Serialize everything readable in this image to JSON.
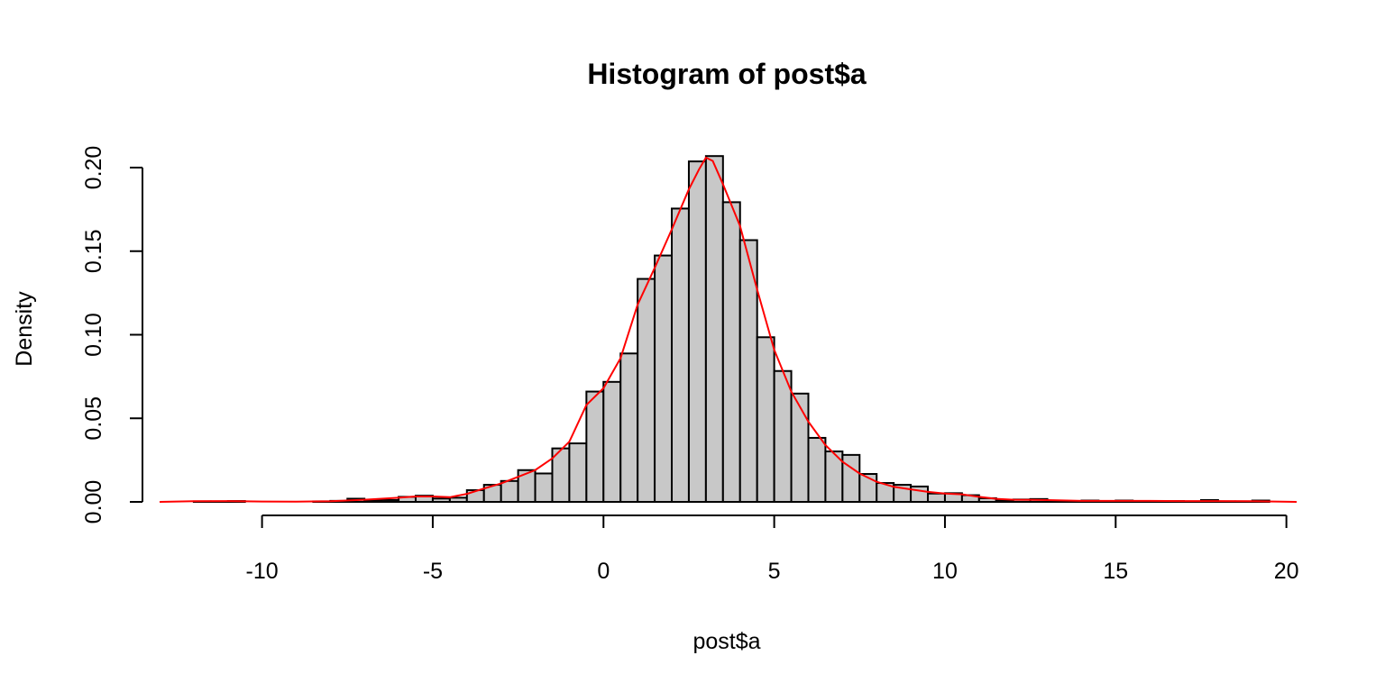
{
  "chart_data": {
    "type": "bar",
    "subtype": "histogram",
    "title": "Histogram of post$a",
    "xlabel": "post$a",
    "ylabel": "Density",
    "xlim": [
      -13,
      20.3
    ],
    "ylim": [
      0,
      0.2
    ],
    "x_ticks": [
      -10,
      -5,
      0,
      5,
      10,
      15,
      20
    ],
    "x_tick_labels": [
      "-10",
      "-5",
      "0",
      "5",
      "10",
      "15",
      "20"
    ],
    "y_ticks": [
      0.0,
      0.05,
      0.1,
      0.15,
      0.2
    ],
    "y_tick_labels": [
      "0.00",
      "0.05",
      "0.10",
      "0.15",
      "0.20"
    ],
    "grid": false,
    "legend": "none",
    "bin_width": 0.5,
    "bar_fill": "#c8c8c8",
    "bar_border": "#000000",
    "bins": [
      {
        "x0": -12.0,
        "x1": -11.5,
        "density": 0.0003
      },
      {
        "x0": -11.5,
        "x1": -11.0,
        "density": 0.0003
      },
      {
        "x0": -11.0,
        "x1": -10.5,
        "density": 0.0005
      },
      {
        "x0": -10.5,
        "x1": -10.0,
        "density": 0.0
      },
      {
        "x0": -10.0,
        "x1": -9.5,
        "density": 0.0
      },
      {
        "x0": -9.5,
        "x1": -9.0,
        "density": 0.0
      },
      {
        "x0": -9.0,
        "x1": -8.5,
        "density": 0.0
      },
      {
        "x0": -8.5,
        "x1": -8.0,
        "density": 0.0003
      },
      {
        "x0": -8.0,
        "x1": -7.5,
        "density": 0.0006
      },
      {
        "x0": -7.5,
        "x1": -7.0,
        "density": 0.0019
      },
      {
        "x0": -7.0,
        "x1": -6.5,
        "density": 0.0008
      },
      {
        "x0": -6.5,
        "x1": -6.0,
        "density": 0.0011
      },
      {
        "x0": -6.0,
        "x1": -5.5,
        "density": 0.003
      },
      {
        "x0": -5.5,
        "x1": -5.0,
        "density": 0.0037
      },
      {
        "x0": -5.0,
        "x1": -4.5,
        "density": 0.002
      },
      {
        "x0": -4.5,
        "x1": -4.0,
        "density": 0.0025
      },
      {
        "x0": -4.0,
        "x1": -3.5,
        "density": 0.007
      },
      {
        "x0": -3.5,
        "x1": -3.0,
        "density": 0.0102
      },
      {
        "x0": -3.0,
        "x1": -2.5,
        "density": 0.0125
      },
      {
        "x0": -2.5,
        "x1": -2.0,
        "density": 0.019
      },
      {
        "x0": -2.0,
        "x1": -1.5,
        "density": 0.017
      },
      {
        "x0": -1.5,
        "x1": -1.0,
        "density": 0.032
      },
      {
        "x0": -1.0,
        "x1": -0.5,
        "density": 0.035
      },
      {
        "x0": -0.5,
        "x1": 0.0,
        "density": 0.066
      },
      {
        "x0": 0.0,
        "x1": 0.5,
        "density": 0.0718
      },
      {
        "x0": 0.5,
        "x1": 1.0,
        "density": 0.0888
      },
      {
        "x0": 1.0,
        "x1": 1.5,
        "density": 0.1334
      },
      {
        "x0": 1.5,
        "x1": 2.0,
        "density": 0.1474
      },
      {
        "x0": 2.0,
        "x1": 2.5,
        "density": 0.1755
      },
      {
        "x0": 2.5,
        "x1": 3.0,
        "density": 0.2037
      },
      {
        "x0": 3.0,
        "x1": 3.5,
        "density": 0.2069
      },
      {
        "x0": 3.5,
        "x1": 4.0,
        "density": 0.1793
      },
      {
        "x0": 4.0,
        "x1": 4.5,
        "density": 0.1566
      },
      {
        "x0": 4.5,
        "x1": 5.0,
        "density": 0.0985
      },
      {
        "x0": 5.0,
        "x1": 5.5,
        "density": 0.0783
      },
      {
        "x0": 5.5,
        "x1": 6.0,
        "density": 0.0648
      },
      {
        "x0": 6.0,
        "x1": 6.5,
        "density": 0.0383
      },
      {
        "x0": 6.5,
        "x1": 7.0,
        "density": 0.0302
      },
      {
        "x0": 7.0,
        "x1": 7.5,
        "density": 0.0281
      },
      {
        "x0": 7.5,
        "x1": 8.0,
        "density": 0.0167
      },
      {
        "x0": 8.0,
        "x1": 8.5,
        "density": 0.0113
      },
      {
        "x0": 8.5,
        "x1": 9.0,
        "density": 0.0102
      },
      {
        "x0": 9.0,
        "x1": 9.5,
        "density": 0.0092
      },
      {
        "x0": 9.5,
        "x1": 10.0,
        "density": 0.005
      },
      {
        "x0": 10.0,
        "x1": 10.5,
        "density": 0.0052
      },
      {
        "x0": 10.5,
        "x1": 11.0,
        "density": 0.004
      },
      {
        "x0": 11.0,
        "x1": 11.5,
        "density": 0.0022
      },
      {
        "x0": 11.5,
        "x1": 12.0,
        "density": 0.0008
      },
      {
        "x0": 12.0,
        "x1": 12.5,
        "density": 0.0014
      },
      {
        "x0": 12.5,
        "x1": 13.0,
        "density": 0.0017
      },
      {
        "x0": 13.0,
        "x1": 13.5,
        "density": 0.0005
      },
      {
        "x0": 13.5,
        "x1": 14.0,
        "density": 0.0003
      },
      {
        "x0": 14.0,
        "x1": 14.5,
        "density": 0.0008
      },
      {
        "x0": 14.5,
        "x1": 15.0,
        "density": 0.0003
      },
      {
        "x0": 15.0,
        "x1": 15.5,
        "density": 0.0008
      },
      {
        "x0": 15.5,
        "x1": 16.0,
        "density": 0.0003
      },
      {
        "x0": 16.0,
        "x1": 16.5,
        "density": 0.0005
      },
      {
        "x0": 16.5,
        "x1": 17.0,
        "density": 0.0005
      },
      {
        "x0": 17.0,
        "x1": 17.5,
        "density": 0.0003
      },
      {
        "x0": 17.5,
        "x1": 18.0,
        "density": 0.0011
      },
      {
        "x0": 18.0,
        "x1": 18.5,
        "density": 0.0003
      },
      {
        "x0": 18.5,
        "x1": 19.0,
        "density": 0.0003
      },
      {
        "x0": 19.0,
        "x1": 19.5,
        "density": 0.0008
      }
    ],
    "density_curve": {
      "color": "#ff0000",
      "x": [
        -13.0,
        -12.0,
        -11.0,
        -10.0,
        -9.0,
        -8.0,
        -7.0,
        -6.0,
        -5.5,
        -5.0,
        -4.5,
        -4.0,
        -3.5,
        -3.0,
        -2.5,
        -2.0,
        -1.5,
        -1.0,
        -0.5,
        0.0,
        0.5,
        1.0,
        1.5,
        2.0,
        2.5,
        2.8,
        3.0,
        3.2,
        3.5,
        4.0,
        4.5,
        5.0,
        5.5,
        6.0,
        6.5,
        7.0,
        7.5,
        8.0,
        8.5,
        9.0,
        9.5,
        10.0,
        10.5,
        11.0,
        11.5,
        12.0,
        13.0,
        14.0,
        15.0,
        16.0,
        17.0,
        18.0,
        19.0,
        20.3
      ],
      "y": [
        0.0,
        0.0004,
        0.0005,
        0.0002,
        0.0001,
        0.0004,
        0.0013,
        0.0025,
        0.0032,
        0.0032,
        0.0028,
        0.0048,
        0.008,
        0.011,
        0.015,
        0.019,
        0.026,
        0.036,
        0.058,
        0.068,
        0.086,
        0.118,
        0.14,
        0.163,
        0.187,
        0.199,
        0.206,
        0.204,
        0.19,
        0.165,
        0.127,
        0.091,
        0.066,
        0.048,
        0.034,
        0.024,
        0.017,
        0.012,
        0.009,
        0.0075,
        0.006,
        0.005,
        0.0045,
        0.003,
        0.0018,
        0.0013,
        0.0011,
        0.0006,
        0.0006,
        0.0006,
        0.0005,
        0.0005,
        0.0004,
        0.0
      ]
    }
  }
}
